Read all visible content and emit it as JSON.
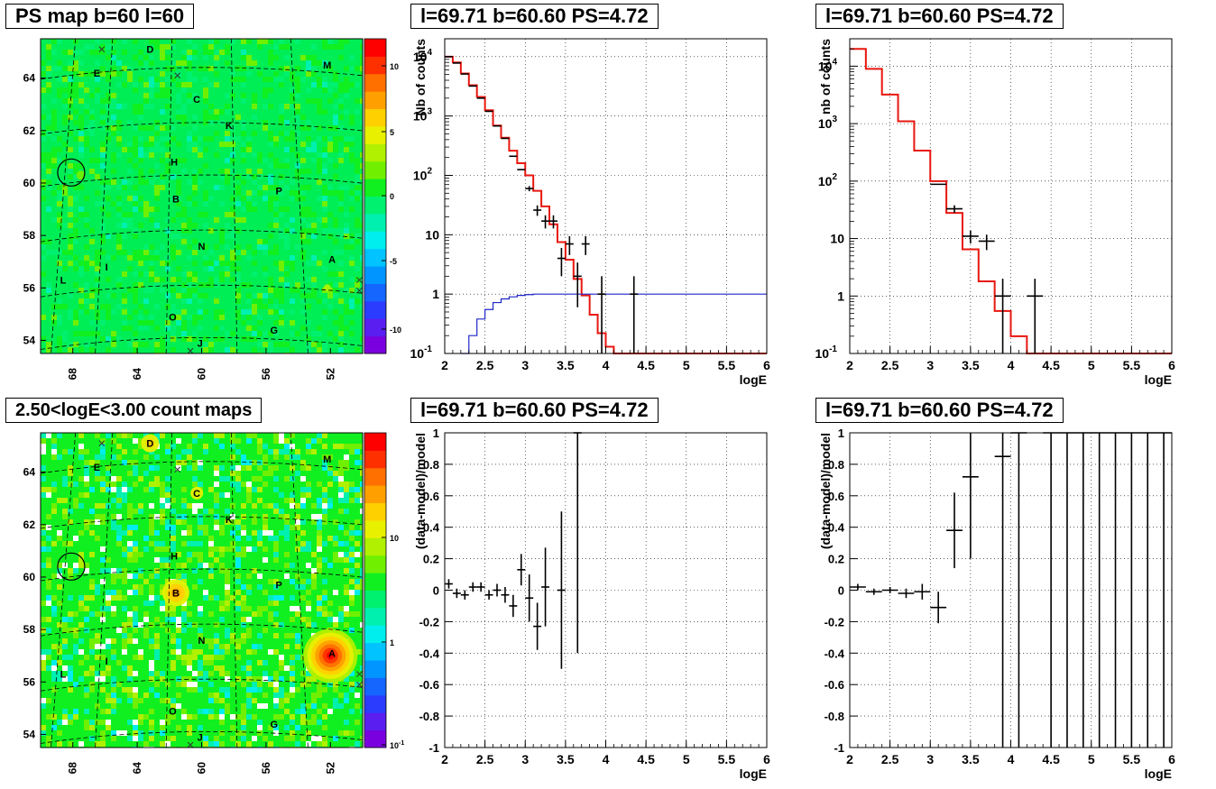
{
  "panels": {
    "ps_map": {
      "title": "PS map b=60 l=60",
      "xticks": [
        "68",
        "64",
        "60",
        "56",
        "52"
      ],
      "yticks": [
        "64",
        "62",
        "60",
        "58",
        "56",
        "54"
      ],
      "colorbar_ticks": [
        "10",
        "5",
        "0",
        "-5",
        "-10"
      ],
      "source_labels": [
        {
          "t": "D",
          "l": 63.2,
          "b": 65.1
        },
        {
          "t": "E",
          "l": 66.5,
          "b": 64.2
        },
        {
          "t": "M",
          "l": 52.2,
          "b": 64.5
        },
        {
          "t": "C",
          "l": 60.3,
          "b": 63.2
        },
        {
          "t": "K",
          "l": 58.3,
          "b": 62.2
        },
        {
          "t": "H",
          "l": 61.7,
          "b": 60.8
        },
        {
          "t": "P",
          "l": 55.2,
          "b": 59.7
        },
        {
          "t": "B",
          "l": 61.6,
          "b": 59.4
        },
        {
          "t": "N",
          "l": 60.0,
          "b": 57.6
        },
        {
          "t": "A",
          "l": 51.9,
          "b": 57.1
        },
        {
          "t": "I",
          "l": 65.9,
          "b": 56.8
        },
        {
          "t": "L",
          "l": 68.6,
          "b": 56.3
        },
        {
          "t": "O",
          "l": 61.8,
          "b": 54.9
        },
        {
          "t": "G",
          "l": 55.5,
          "b": 54.4
        },
        {
          "t": "J",
          "l": 60.1,
          "b": 53.9
        }
      ],
      "circle": {
        "l": 68.1,
        "b": 60.4
      }
    },
    "count_map": {
      "title": "2.50<logE<3.00 count maps",
      "xticks": [
        "68",
        "64",
        "60",
        "56",
        "52"
      ],
      "yticks": [
        "64",
        "62",
        "60",
        "58",
        "56",
        "54"
      ],
      "colorbar_ticks": [
        "10",
        "1",
        "10^-1"
      ]
    },
    "spec1": {
      "title": "l=69.71 b=60.60 PS=4.72",
      "ylabel": "Nb of counts",
      "xlabel": "logE"
    },
    "spec2": {
      "title": "l=69.71 b=60.60 PS=4.72",
      "ylabel": "nb of counts",
      "xlabel": "logE"
    },
    "res1": {
      "title": "l=69.71 b=60.60 PS=4.72",
      "ylabel": "(data-model)/model",
      "xlabel": "logE"
    },
    "res2": {
      "title": "l=69.71 b=60.60 PS=4.72",
      "ylabel": "(data-model)/model",
      "xlabel": "logE"
    }
  },
  "chart_data": [
    {
      "type": "heatmap",
      "title": "PS map b=60 l=60",
      "xlim": [
        70,
        50
      ],
      "ylim": [
        53.5,
        65.5
      ],
      "zlim": [
        -12,
        12
      ]
    },
    {
      "type": "heatmap",
      "title": "2.50<logE<3.00 count maps",
      "xlim": [
        70,
        50
      ],
      "ylim": [
        53.5,
        65.5
      ],
      "zlim": [
        0.1,
        30
      ],
      "zscale": "log"
    },
    {
      "type": "line",
      "title": "l=69.71 b=60.60 PS=4.72",
      "xlabel": "logE",
      "ylabel": "Nb of counts",
      "xlim": [
        2,
        6
      ],
      "ylim": [
        0.1,
        20000
      ],
      "yscale": "log",
      "series": [
        {
          "values": [
            [
              2.0,
              10000
            ],
            [
              2.1,
              8000
            ],
            [
              2.2,
              5200
            ],
            [
              2.3,
              3300
            ],
            [
              2.4,
              2100
            ],
            [
              2.5,
              1250
            ],
            [
              2.6,
              690
            ],
            [
              2.7,
              430
            ],
            [
              2.8,
              260
            ],
            [
              2.9,
              160
            ],
            [
              3.0,
              100
            ],
            [
              3.1,
              55
            ],
            [
              3.2,
              30
            ],
            [
              3.3,
              15
            ],
            [
              3.4,
              7.5
            ],
            [
              3.5,
              3.8
            ],
            [
              3.6,
              1.8
            ],
            [
              3.7,
              0.95
            ],
            [
              3.8,
              0.45
            ],
            [
              3.9,
              0.22
            ],
            [
              4.0,
              0.13
            ],
            [
              4.1,
              0.1
            ],
            [
              6.0,
              0.1
            ]
          ],
          "color": "#e8170f"
        },
        {
          "values": [
            [
              2.2,
              0.1
            ],
            [
              2.3,
              0.2
            ],
            [
              2.4,
              0.38
            ],
            [
              2.5,
              0.55
            ],
            [
              2.6,
              0.72
            ],
            [
              2.7,
              0.83
            ],
            [
              2.8,
              0.9
            ],
            [
              2.9,
              0.95
            ],
            [
              3.0,
              0.98
            ],
            [
              3.1,
              1.0
            ],
            [
              6.0,
              1.0
            ]
          ],
          "color": "#1f27c8"
        }
      ],
      "points": [
        [
          2.05,
          10000,
          0.05,
          0
        ],
        [
          2.15,
          7800,
          0.05,
          0
        ],
        [
          2.25,
          5100,
          0.05,
          0
        ],
        [
          2.35,
          3200,
          0.05,
          0
        ],
        [
          2.45,
          2000,
          0.05,
          0
        ],
        [
          2.55,
          1200,
          0.05,
          0
        ],
        [
          2.65,
          680,
          0.05,
          0
        ],
        [
          2.75,
          420,
          0.05,
          0
        ],
        [
          2.85,
          210,
          0.05,
          0
        ],
        [
          2.95,
          125,
          0.05,
          0
        ],
        [
          3.05,
          60,
          0.05,
          0.1
        ],
        [
          3.15,
          26,
          0.05,
          0.2
        ],
        [
          3.25,
          17,
          0.05,
          0.25
        ],
        [
          3.35,
          17,
          0.05,
          0.25
        ],
        [
          3.45,
          4,
          0.05,
          0.5
        ],
        [
          3.55,
          7,
          0.05,
          0.35
        ],
        [
          3.65,
          2,
          0.05,
          0.7
        ],
        [
          3.75,
          7,
          0.05,
          0.35
        ],
        [
          3.95,
          1,
          0.05,
          1.0
        ],
        [
          4.35,
          1,
          0.05,
          1.0
        ]
      ]
    },
    {
      "type": "line",
      "title": "l=69.71 b=60.60 PS=4.72",
      "xlabel": "logE",
      "ylabel": "nb of counts",
      "xlim": [
        2,
        6
      ],
      "ylim": [
        0.1,
        30000
      ],
      "yscale": "log",
      "series": [
        {
          "values": [
            [
              2.0,
              20000
            ],
            [
              2.2,
              9000
            ],
            [
              2.4,
              3200
            ],
            [
              2.6,
              1100
            ],
            [
              2.8,
              340
            ],
            [
              3.0,
              100
            ],
            [
              3.2,
              28
            ],
            [
              3.4,
              6.5
            ],
            [
              3.6,
              1.8
            ],
            [
              3.8,
              0.55
            ],
            [
              4.0,
              0.2
            ],
            [
              4.2,
              0.1
            ],
            [
              6.0,
              0.1
            ]
          ],
          "color": "#e8170f"
        }
      ],
      "points": [
        [
          3.1,
          88,
          0.1,
          0
        ],
        [
          3.3,
          33,
          0.1,
          0.15
        ],
        [
          3.5,
          11,
          0.1,
          0.25
        ],
        [
          3.7,
          9,
          0.1,
          0.3
        ],
        [
          3.9,
          1,
          0.1,
          1.0
        ],
        [
          4.3,
          1,
          0.1,
          1.0
        ]
      ]
    },
    {
      "type": "scatter",
      "title": "l=69.71 b=60.60 PS=4.72",
      "xlabel": "logE",
      "ylabel": "(data-model)/model",
      "xlim": [
        2,
        6
      ],
      "ylim": [
        -1,
        1
      ],
      "points": [
        [
          2.05,
          0.04,
          0.05,
          0.03
        ],
        [
          2.15,
          -0.02,
          0.05,
          0.03
        ],
        [
          2.25,
          -0.03,
          0.05,
          0.03
        ],
        [
          2.35,
          0.02,
          0.05,
          0.03
        ],
        [
          2.45,
          0.02,
          0.05,
          0.03
        ],
        [
          2.55,
          -0.03,
          0.05,
          0.03
        ],
        [
          2.65,
          0.0,
          0.05,
          0.04
        ],
        [
          2.75,
          -0.03,
          0.05,
          0.05
        ],
        [
          2.85,
          -0.1,
          0.05,
          0.07
        ],
        [
          2.95,
          0.13,
          0.05,
          0.1
        ],
        [
          3.05,
          -0.05,
          0.05,
          0.15
        ],
        [
          3.15,
          -0.23,
          0.05,
          0.15
        ],
        [
          3.25,
          0.02,
          0.05,
          0.25
        ],
        [
          3.45,
          0.0,
          0.05,
          0.5
        ],
        [
          3.65,
          1.0,
          0.05,
          1.4
        ]
      ]
    },
    {
      "type": "scatter",
      "title": "l=69.71 b=60.60 PS=4.72",
      "xlabel": "logE",
      "ylabel": "(data-model)/model",
      "xlim": [
        2,
        6
      ],
      "ylim": [
        -1,
        1
      ],
      "points": [
        [
          2.1,
          0.02,
          0.1,
          0.02
        ],
        [
          2.3,
          -0.01,
          0.1,
          0.02
        ],
        [
          2.5,
          0.0,
          0.1,
          0.02
        ],
        [
          2.7,
          -0.02,
          0.1,
          0.03
        ],
        [
          2.9,
          -0.01,
          0.1,
          0.05
        ],
        [
          3.1,
          -0.11,
          0.1,
          0.1
        ],
        [
          3.3,
          0.38,
          0.1,
          0.24
        ],
        [
          3.5,
          0.72,
          0.1,
          0.52
        ],
        [
          3.9,
          0.85,
          0.1,
          2.0
        ],
        [
          4.1,
          1.0,
          0.1,
          2.0
        ],
        [
          4.5,
          1.0,
          0.1,
          2.0
        ],
        [
          4.7,
          1.0,
          0.1,
          2.0
        ],
        [
          4.9,
          1.0,
          0.1,
          2.0
        ],
        [
          5.1,
          1.0,
          0.1,
          2.0
        ],
        [
          5.3,
          1.0,
          0.1,
          2.0
        ],
        [
          5.5,
          1.0,
          0.1,
          2.0
        ],
        [
          5.7,
          1.0,
          0.1,
          2.0
        ],
        [
          5.9,
          1.0,
          0.1,
          2.0
        ]
      ]
    }
  ]
}
